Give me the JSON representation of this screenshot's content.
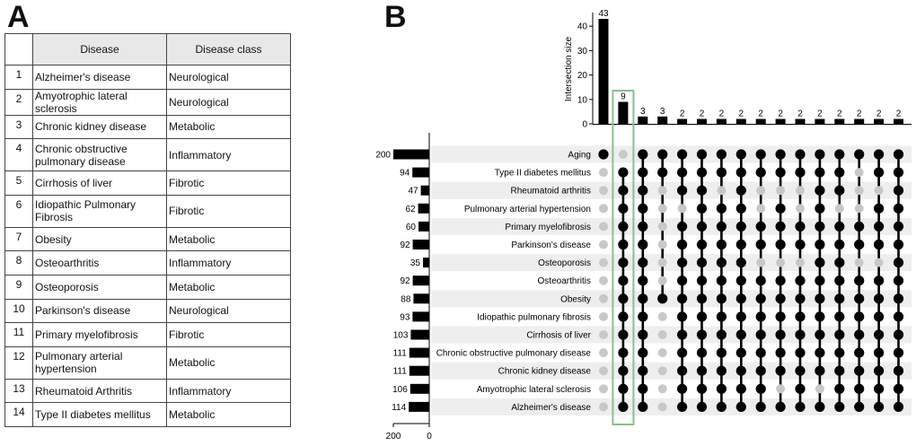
{
  "panel_labels": {
    "a": "A",
    "b": "B"
  },
  "table": {
    "headers": [
      "",
      "Disease",
      "Disease class"
    ],
    "rows": [
      {
        "num": "1",
        "disease": "Alzheimer's disease",
        "cls": "Neurological"
      },
      {
        "num": "2",
        "disease": "Amyotrophic lateral sclerosis",
        "cls": "Neurological"
      },
      {
        "num": "3",
        "disease": "Chronic kidney disease",
        "cls": "Metabolic"
      },
      {
        "num": "4",
        "disease": "Chronic obstructive pulmonary disease",
        "cls": "Inflammatory"
      },
      {
        "num": "5",
        "disease": "Cirrhosis of liver",
        "cls": "Fibrotic"
      },
      {
        "num": "6",
        "disease": "Idiopathic Pulmonary Fibrosis",
        "cls": "Fibrotic"
      },
      {
        "num": "7",
        "disease": "Obesity",
        "cls": "Metabolic"
      },
      {
        "num": "8",
        "disease": "Osteoarthritis",
        "cls": "Inflammatory"
      },
      {
        "num": "9",
        "disease": "Osteoporosis",
        "cls": "Metabolic"
      },
      {
        "num": "10",
        "disease": "Parkinson's disease",
        "cls": "Neurological"
      },
      {
        "num": "11",
        "disease": "Primary myelofibrosis",
        "cls": "Fibrotic"
      },
      {
        "num": "12",
        "disease": "Pulmonary arterial hypertension",
        "cls": "Metabolic"
      },
      {
        "num": "13",
        "disease": "Rheumatoid Arthritis",
        "cls": "Inflammatory"
      },
      {
        "num": "14",
        "disease": "Type II diabetes mellitus",
        "cls": "Metabolic"
      }
    ]
  },
  "chart_data": {
    "type": "upset",
    "intersection_axis": {
      "label": "Intersection size",
      "ticks": [
        0,
        10,
        20,
        30,
        40
      ],
      "range": [
        0,
        45
      ]
    },
    "set_size_axis": {
      "ticks": [
        200,
        0
      ],
      "range": [
        0,
        200
      ]
    },
    "sets": [
      {
        "name": "Aging",
        "size": 200
      },
      {
        "name": "Type II diabetes mellitus",
        "size": 94
      },
      {
        "name": "Rheumatoid arthritis",
        "size": 47
      },
      {
        "name": "Pulmonary arterial hypertension",
        "size": 62
      },
      {
        "name": "Primary myelofibrosis",
        "size": 60
      },
      {
        "name": "Parkinson's disease",
        "size": 92
      },
      {
        "name": "Osteoporosis",
        "size": 35
      },
      {
        "name": "Osteoarthritis",
        "size": 92
      },
      {
        "name": "Obesity",
        "size": 88
      },
      {
        "name": "Idiopathic pulmonary fibrosis",
        "size": 93
      },
      {
        "name": "Cirrhosis of liver",
        "size": 103
      },
      {
        "name": "Chronic obstructive pulmonary disease",
        "size": 111
      },
      {
        "name": "Chronic kidney disease",
        "size": 111
      },
      {
        "name": "Amyotrophic lateral sclerosis",
        "size": 106
      },
      {
        "name": "Alzheimer's disease",
        "size": 114
      }
    ],
    "intersections": [
      {
        "size": 43,
        "label": "43",
        "members": [
          "Aging"
        ]
      },
      {
        "size": 9,
        "label": "9",
        "highlight": true,
        "members": [
          "Type II diabetes mellitus",
          "Rheumatoid arthritis",
          "Pulmonary arterial hypertension",
          "Primary myelofibrosis",
          "Parkinson's disease",
          "Osteoporosis",
          "Osteoarthritis",
          "Obesity",
          "Idiopathic pulmonary fibrosis",
          "Cirrhosis of liver",
          "Chronic obstructive pulmonary disease",
          "Chronic kidney disease",
          "Amyotrophic lateral sclerosis",
          "Alzheimer's disease"
        ]
      },
      {
        "size": 3,
        "label": "3",
        "members": [
          "Aging",
          "Type II diabetes mellitus",
          "Rheumatoid arthritis",
          "Pulmonary arterial hypertension",
          "Primary myelofibrosis",
          "Parkinson's disease",
          "Osteoporosis",
          "Osteoarthritis",
          "Obesity",
          "Idiopathic pulmonary fibrosis",
          "Cirrhosis of liver",
          "Chronic obstructive pulmonary disease",
          "Chronic kidney disease",
          "Amyotrophic lateral sclerosis",
          "Alzheimer's disease"
        ]
      },
      {
        "size": 3,
        "label": "3",
        "members": [
          "Aging",
          "Type II diabetes mellitus",
          "Obesity"
        ]
      },
      {
        "size": 2,
        "label": "2",
        "members": [
          "Aging",
          "Type II diabetes mellitus",
          "Rheumatoid arthritis",
          "Primary myelofibrosis",
          "Parkinson's disease",
          "Osteoporosis",
          "Osteoarthritis",
          "Obesity",
          "Idiopathic pulmonary fibrosis",
          "Cirrhosis of liver",
          "Chronic obstructive pulmonary disease",
          "Chronic kidney disease",
          "Amyotrophic lateral sclerosis",
          "Alzheimer's disease"
        ]
      },
      {
        "size": 2,
        "label": "2",
        "members": [
          "Aging",
          "Type II diabetes mellitus",
          "Rheumatoid arthritis",
          "Pulmonary arterial hypertension",
          "Primary myelofibrosis",
          "Parkinson's disease",
          "Osteoporosis",
          "Osteoarthritis",
          "Obesity",
          "Idiopathic pulmonary fibrosis",
          "Cirrhosis of liver",
          "Chronic obstructive pulmonary disease",
          "Chronic kidney disease",
          "Amyotrophic lateral sclerosis",
          "Alzheimer's disease"
        ]
      },
      {
        "size": 2,
        "label": "2",
        "members": [
          "Aging",
          "Type II diabetes mellitus",
          "Pulmonary arterial hypertension",
          "Primary myelofibrosis",
          "Parkinson's disease",
          "Osteoporosis",
          "Osteoarthritis",
          "Obesity",
          "Idiopathic pulmonary fibrosis",
          "Cirrhosis of liver",
          "Chronic obstructive pulmonary disease",
          "Chronic kidney disease",
          "Amyotrophic lateral sclerosis",
          "Alzheimer's disease"
        ]
      },
      {
        "size": 2,
        "label": "2",
        "members": [
          "Aging",
          "Type II diabetes mellitus",
          "Rheumatoid arthritis",
          "Pulmonary arterial hypertension",
          "Primary myelofibrosis",
          "Parkinson's disease",
          "Osteoporosis",
          "Osteoarthritis",
          "Obesity",
          "Idiopathic pulmonary fibrosis",
          "Cirrhosis of liver",
          "Chronic obstructive pulmonary disease",
          "Chronic kidney disease",
          "Amyotrophic lateral sclerosis",
          "Alzheimer's disease"
        ]
      },
      {
        "size": 2,
        "label": "2",
        "members": [
          "Aging",
          "Type II diabetes mellitus",
          "Primary myelofibrosis",
          "Parkinson's disease",
          "Osteoarthritis",
          "Obesity",
          "Idiopathic pulmonary fibrosis",
          "Cirrhosis of liver",
          "Chronic obstructive pulmonary disease",
          "Chronic kidney disease",
          "Amyotrophic lateral sclerosis",
          "Alzheimer's disease"
        ]
      },
      {
        "size": 2,
        "label": "2",
        "members": [
          "Aging",
          "Type II diabetes mellitus",
          "Pulmonary arterial hypertension",
          "Primary myelofibrosis",
          "Parkinson's disease",
          "Osteoarthritis",
          "Obesity",
          "Idiopathic pulmonary fibrosis",
          "Cirrhosis of liver",
          "Chronic obstructive pulmonary disease",
          "Chronic kidney disease",
          "Alzheimer's disease"
        ]
      },
      {
        "size": 2,
        "label": "2",
        "members": [
          "Aging",
          "Type II diabetes mellitus",
          "Primary myelofibrosis",
          "Parkinson's disease",
          "Osteoarthritis",
          "Obesity",
          "Idiopathic pulmonary fibrosis",
          "Cirrhosis of liver",
          "Chronic obstructive pulmonary disease",
          "Chronic kidney disease",
          "Amyotrophic lateral sclerosis",
          "Alzheimer's disease"
        ]
      },
      {
        "size": 2,
        "label": "2",
        "members": [
          "Aging",
          "Type II diabetes mellitus",
          "Rheumatoid arthritis",
          "Pulmonary arterial hypertension",
          "Primary myelofibrosis",
          "Parkinson's disease",
          "Osteoporosis",
          "Osteoarthritis",
          "Obesity",
          "Idiopathic pulmonary fibrosis",
          "Cirrhosis of liver",
          "Chronic obstructive pulmonary disease",
          "Chronic kidney disease",
          "Alzheimer's disease"
        ]
      },
      {
        "size": 2,
        "label": "2",
        "members": [
          "Aging",
          "Type II diabetes mellitus",
          "Rheumatoid arthritis",
          "Primary myelofibrosis",
          "Parkinson's disease",
          "Osteoporosis",
          "Osteoarthritis",
          "Obesity",
          "Idiopathic pulmonary fibrosis",
          "Cirrhosis of liver",
          "Chronic obstructive pulmonary disease",
          "Chronic kidney disease",
          "Amyotrophic lateral sclerosis",
          "Alzheimer's disease"
        ]
      },
      {
        "size": 2,
        "label": "2",
        "members": [
          "Aging",
          "Primary myelofibrosis",
          "Parkinson's disease",
          "Osteoarthritis",
          "Obesity",
          "Idiopathic pulmonary fibrosis",
          "Cirrhosis of liver",
          "Chronic obstructive pulmonary disease",
          "Chronic kidney disease",
          "Amyotrophic lateral sclerosis",
          "Alzheimer's disease"
        ]
      },
      {
        "size": 2,
        "label": "2",
        "members": [
          "Aging",
          "Type II diabetes mellitus",
          "Pulmonary arterial hypertension",
          "Primary myelofibrosis",
          "Parkinson's disease",
          "Osteoarthritis",
          "Obesity",
          "Idiopathic pulmonary fibrosis",
          "Cirrhosis of liver",
          "Chronic obstructive pulmonary disease",
          "Chronic kidney disease",
          "Amyotrophic lateral sclerosis",
          "Alzheimer's disease"
        ]
      },
      {
        "size": 2,
        "label": "2",
        "members": [
          "Aging",
          "Type II diabetes mellitus",
          "Rheumatoid arthritis",
          "Pulmonary arterial hypertension",
          "Primary myelofibrosis",
          "Parkinson's disease",
          "Osteoporosis",
          "Osteoarthritis",
          "Obesity",
          "Idiopathic pulmonary fibrosis",
          "Cirrhosis of liver",
          "Chronic obstructive pulmonary disease",
          "Chronic kidney disease",
          "Amyotrophic lateral sclerosis",
          "Alzheimer's disease"
        ]
      }
    ],
    "colors": {
      "bar": "#000000",
      "dot_on": "#000000",
      "dot_off": "#c8c8c8",
      "row_stripe": "#eeeeee",
      "highlight_box": "#8bc08b"
    }
  }
}
